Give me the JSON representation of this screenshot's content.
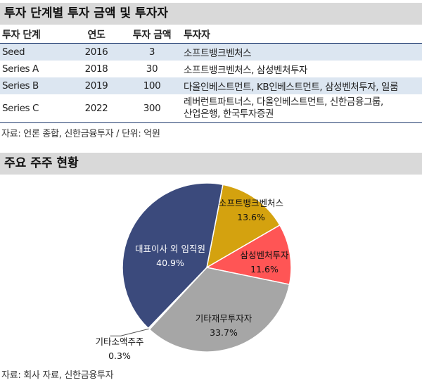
{
  "table_section": {
    "title": "투자 단계별 투자 금액 및 투자자",
    "headers": [
      "투자 단계",
      "연도",
      "투자 금액",
      "투자자"
    ],
    "rows": [
      {
        "stage": "Seed",
        "year": "2016",
        "amount": "3",
        "investors": "소프트뱅크벤처스"
      },
      {
        "stage": "Series A",
        "year": "2018",
        "amount": "30",
        "investors": "소프트뱅크벤처스, 삼성벤처투자"
      },
      {
        "stage": "Series B",
        "year": "2019",
        "amount": "100",
        "investors": "다올인베스트먼트, KB인베스트먼트, 삼성벤처투자, 일룸"
      },
      {
        "stage": "Series C",
        "year": "2022",
        "amount": "300",
        "investors_line1": "레버런트파트너스, 다올인베스트먼트, 신한금융그룹,",
        "investors_line2": "산업은행, 한국투자증권"
      }
    ],
    "source": "자료: 언론 종합, 신한금융투자 / 단위: 억원"
  },
  "chart_section": {
    "title": "주요 주주 현황",
    "source": "자료: 회사 자료, 신한금융투자"
  },
  "chart_data": {
    "type": "pie",
    "title": "주요 주주 현황",
    "slices": [
      {
        "label": "소프트뱅크벤처스",
        "value": 13.6,
        "value_label": "13.6%",
        "color": "#d4a20f"
      },
      {
        "label": "삼성벤처투자",
        "value": 11.6,
        "value_label": "11.6%",
        "color": "#ff5555"
      },
      {
        "label": "기타재무투자자",
        "value": 33.7,
        "value_label": "33.7%",
        "color": "#a6a6a6"
      },
      {
        "label": "기타소액주주",
        "value": 0.3,
        "value_label": "0.3%",
        "color": "#f2f2f2"
      },
      {
        "label": "대표이사 외 임직원",
        "value": 40.9,
        "value_label": "40.9%",
        "color": "#3b4a7c"
      }
    ],
    "start_angle_deg": 11,
    "direction": "clockwise"
  }
}
